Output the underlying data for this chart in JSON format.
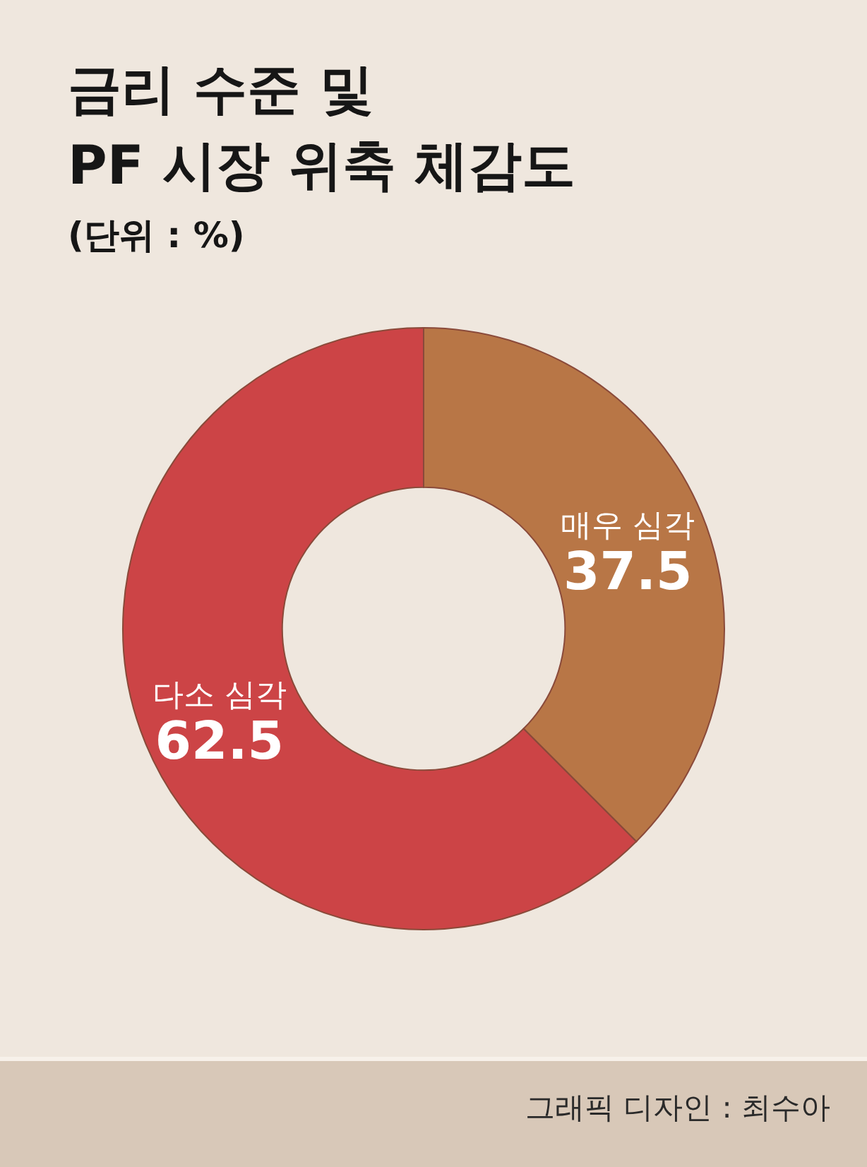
{
  "chart_data": {
    "type": "donut",
    "title": "금리 수준 및\nPF 시장 위축 체감도",
    "subtitle": "(단위 : %)",
    "categories": [
      "매우 심각",
      "다소 심각"
    ],
    "values": [
      37.5,
      62.5
    ],
    "colors": [
      "#b87646",
      "#cc4446"
    ],
    "data_labels": true,
    "annotations": [
      "그래픽 디자인 : 최수아"
    ]
  }
}
